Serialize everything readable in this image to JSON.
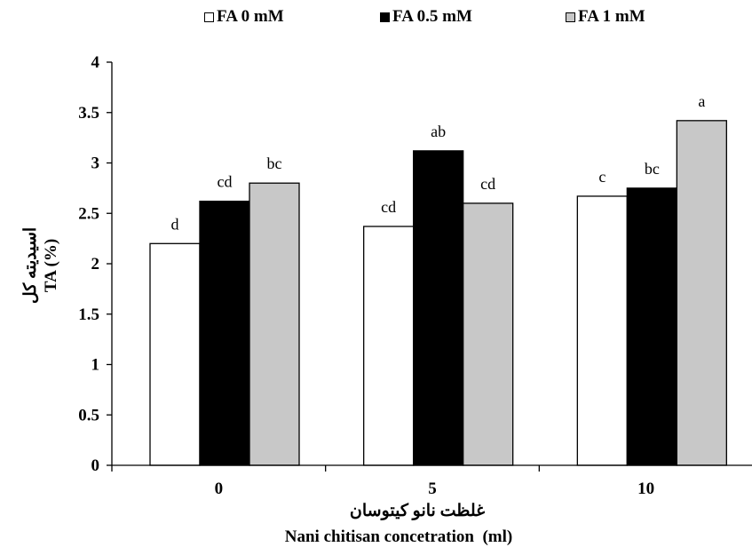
{
  "chart_data": {
    "type": "bar",
    "categories": [
      "0",
      "5",
      "10"
    ],
    "series": [
      {
        "name": "FA 0 mM",
        "color": "#ffffff",
        "values": [
          2.2,
          2.37,
          2.67
        ],
        "labels": [
          "d",
          "cd",
          "c"
        ]
      },
      {
        "name": "FA 0.5 mM",
        "color": "#000000",
        "values": [
          2.62,
          3.12,
          2.75
        ],
        "labels": [
          "cd",
          "ab",
          "bc"
        ]
      },
      {
        "name": "FA 1 mM",
        "color": "#c8c8c8",
        "values": [
          2.8,
          2.6,
          3.42
        ],
        "labels": [
          "bc",
          "cd",
          "a"
        ]
      }
    ],
    "ylim": [
      0,
      4
    ],
    "yticks": [
      "0",
      "0.5",
      "1",
      "1.5",
      "2",
      "2.5",
      "3",
      "3.5",
      "4"
    ],
    "ylabel_fa": "اسیدیته کل",
    "ylabel_en": "TA (%)",
    "xlabel_fa": "غلظت نانو کیتوسان",
    "xlabel_en": "Nani chitisan concetration  (ml)",
    "legend_position": "top",
    "grid": false
  }
}
